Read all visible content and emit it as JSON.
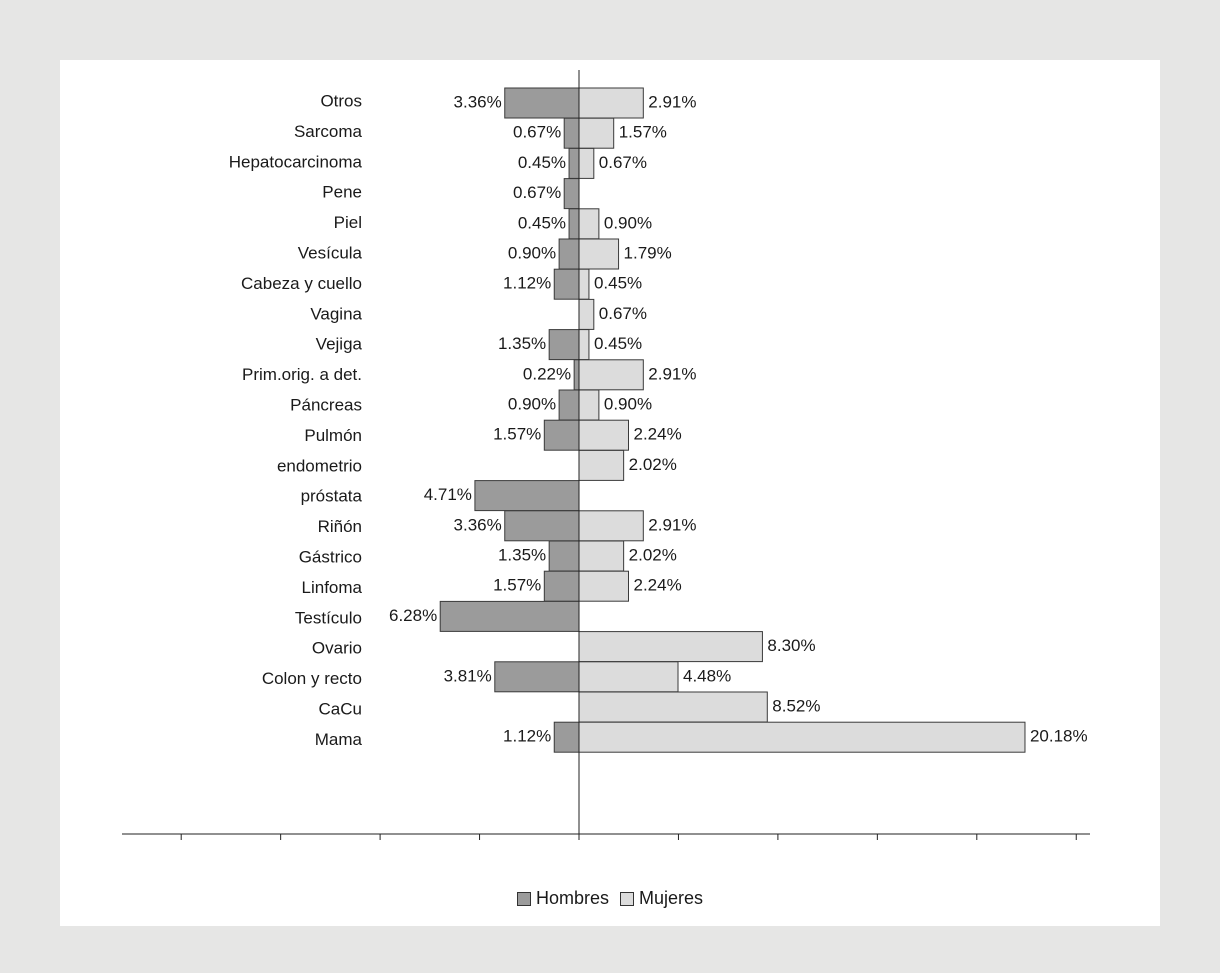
{
  "chart_data": {
    "type": "bar",
    "orientation": "horizontal",
    "layout": "population-pyramid",
    "category_labels": [
      "Otros",
      "Sarcoma",
      "Hepatocarcinoma",
      "Pene",
      "Piel",
      "Vesícula",
      "Cabeza y cuello",
      "Vagina",
      "Vejiga",
      "Prim.orig. a det.",
      "Páncreas",
      "Pulmón",
      "endometrio",
      "próstata",
      "Riñón",
      "Gástrico",
      "Linfoma",
      "Testículo",
      "Ovario",
      "Colon y recto",
      "CaCu",
      "Mama"
    ],
    "rows": [
      {
        "hombres": 3.36,
        "hombres_label": "3.36%",
        "mujeres": 2.91,
        "mujeres_label": "2.91%"
      },
      {
        "hombres": 0.67,
        "hombres_label": "0.67%",
        "mujeres": 1.57,
        "mujeres_label": "1.57%"
      },
      {
        "hombres": 0.45,
        "hombres_label": "0.45%",
        "mujeres": 0.67,
        "mujeres_label": "0.67%"
      },
      {
        "hombres": 0.67,
        "hombres_label": "0.67%",
        "mujeres": null,
        "mujeres_label": ""
      },
      {
        "hombres": 0.45,
        "hombres_label": "0.45%",
        "mujeres": 0.9,
        "mujeres_label": "0.90%"
      },
      {
        "hombres": 0.9,
        "hombres_label": "0.90%",
        "mujeres": 1.79,
        "mujeres_label": "1.79%"
      },
      {
        "hombres": 1.12,
        "hombres_label": "1.12%",
        "mujeres": 0.45,
        "mujeres_label": "0.45%"
      },
      {
        "hombres": null,
        "hombres_label": "",
        "mujeres": 0.67,
        "mujeres_label": "0.67%"
      },
      {
        "hombres": 1.35,
        "hombres_label": "1.35%",
        "mujeres": 0.45,
        "mujeres_label": "0.45%"
      },
      {
        "hombres": 0.22,
        "hombres_label": "0.22%",
        "mujeres": 2.91,
        "mujeres_label": "2.91%"
      },
      {
        "hombres": 0.9,
        "hombres_label": "0.90%",
        "mujeres": 0.9,
        "mujeres_label": "0.90%"
      },
      {
        "hombres": 1.57,
        "hombres_label": "1.57%",
        "mujeres": 2.24,
        "mujeres_label": "2.24%"
      },
      {
        "hombres": null,
        "hombres_label": "",
        "mujeres": 2.02,
        "mujeres_label": "2.02%"
      },
      {
        "hombres": 4.71,
        "hombres_label": "4.71%",
        "mujeres": null,
        "mujeres_label": ""
      },
      {
        "hombres": 3.36,
        "hombres_label": "3.36%",
        "mujeres": 2.91,
        "mujeres_label": "2.91%"
      },
      {
        "hombres": 1.35,
        "hombres_label": "1.35%",
        "mujeres": 2.02,
        "mujeres_label": "2.02%"
      },
      {
        "hombres": 1.57,
        "hombres_label": "1.57%",
        "mujeres": 2.24,
        "mujeres_label": "2.24%"
      },
      {
        "hombres": 6.28,
        "hombres_label": "6.28%",
        "mujeres": null,
        "mujeres_label": ""
      },
      {
        "hombres": null,
        "hombres_label": "",
        "mujeres": 8.3,
        "mujeres_label": "8.30%"
      },
      {
        "hombres": 3.81,
        "hombres_label": "3.81%",
        "mujeres": 4.48,
        "mujeres_label": "4.48%"
      },
      {
        "hombres": null,
        "hombres_label": "",
        "mujeres": 8.52,
        "mujeres_label": "8.52%"
      },
      {
        "hombres": 1.12,
        "hombres_label": "1.12%",
        "mujeres": 20.18,
        "mujeres_label": "20.18%"
      }
    ],
    "series": [
      {
        "name": "Hombres",
        "color": "#9b9b9b"
      },
      {
        "name": "Mujeres",
        "color": "#dcdcdc"
      }
    ],
    "xlim": [
      -18,
      22.5
    ],
    "grid": false,
    "legend_position": "bottom"
  },
  "legend": {
    "hombres_label": "Hombres",
    "mujeres_label": "Mujeres"
  }
}
